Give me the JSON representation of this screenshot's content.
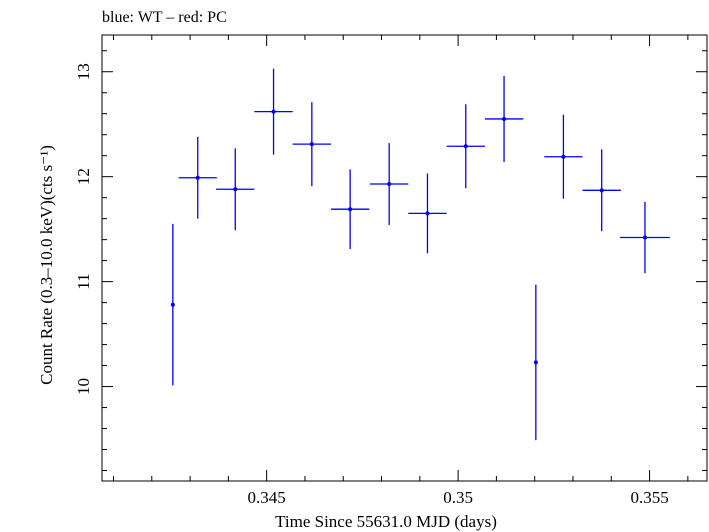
{
  "chart_data": {
    "type": "scatter",
    "title": "blue: WT – red: PC",
    "xlabel": "Time Since 55631.0 MJD (days)",
    "ylabel": "Count Rate (0.3–10.0 keV)(cts s⁻¹)",
    "xlim": [
      0.3407,
      0.3565
    ],
    "ylim": [
      9.1,
      13.35
    ],
    "x_ticks": [
      0.345,
      0.35,
      0.355
    ],
    "x_tick_labels": [
      "0.345",
      "0.35",
      "0.355"
    ],
    "y_ticks": [
      10,
      11,
      12,
      13
    ],
    "y_tick_labels": [
      "10",
      "11",
      "12",
      "13"
    ],
    "grid": false,
    "series": [
      {
        "color": "#0000ff",
        "x": [
          0.34255,
          0.3432,
          0.34418,
          0.34518,
          0.34618,
          0.34718,
          0.3482,
          0.3492,
          0.3502,
          0.3512,
          0.35203,
          0.35275,
          0.35375,
          0.35488
        ],
        "xerr": [
          3e-05,
          0.0005,
          0.0005,
          0.0005,
          0.0005,
          0.0005,
          0.0005,
          0.0005,
          0.0005,
          0.0005,
          3e-05,
          0.0005,
          0.0005,
          0.00065
        ],
        "y": [
          10.78,
          11.99,
          11.88,
          12.62,
          12.31,
          11.69,
          11.93,
          11.65,
          12.29,
          12.55,
          10.23,
          12.19,
          11.87,
          11.42
        ],
        "yerr": [
          0.77,
          0.39,
          0.39,
          0.41,
          0.4,
          0.38,
          0.39,
          0.38,
          0.4,
          0.41,
          0.74,
          0.4,
          0.39,
          0.34
        ]
      }
    ]
  }
}
